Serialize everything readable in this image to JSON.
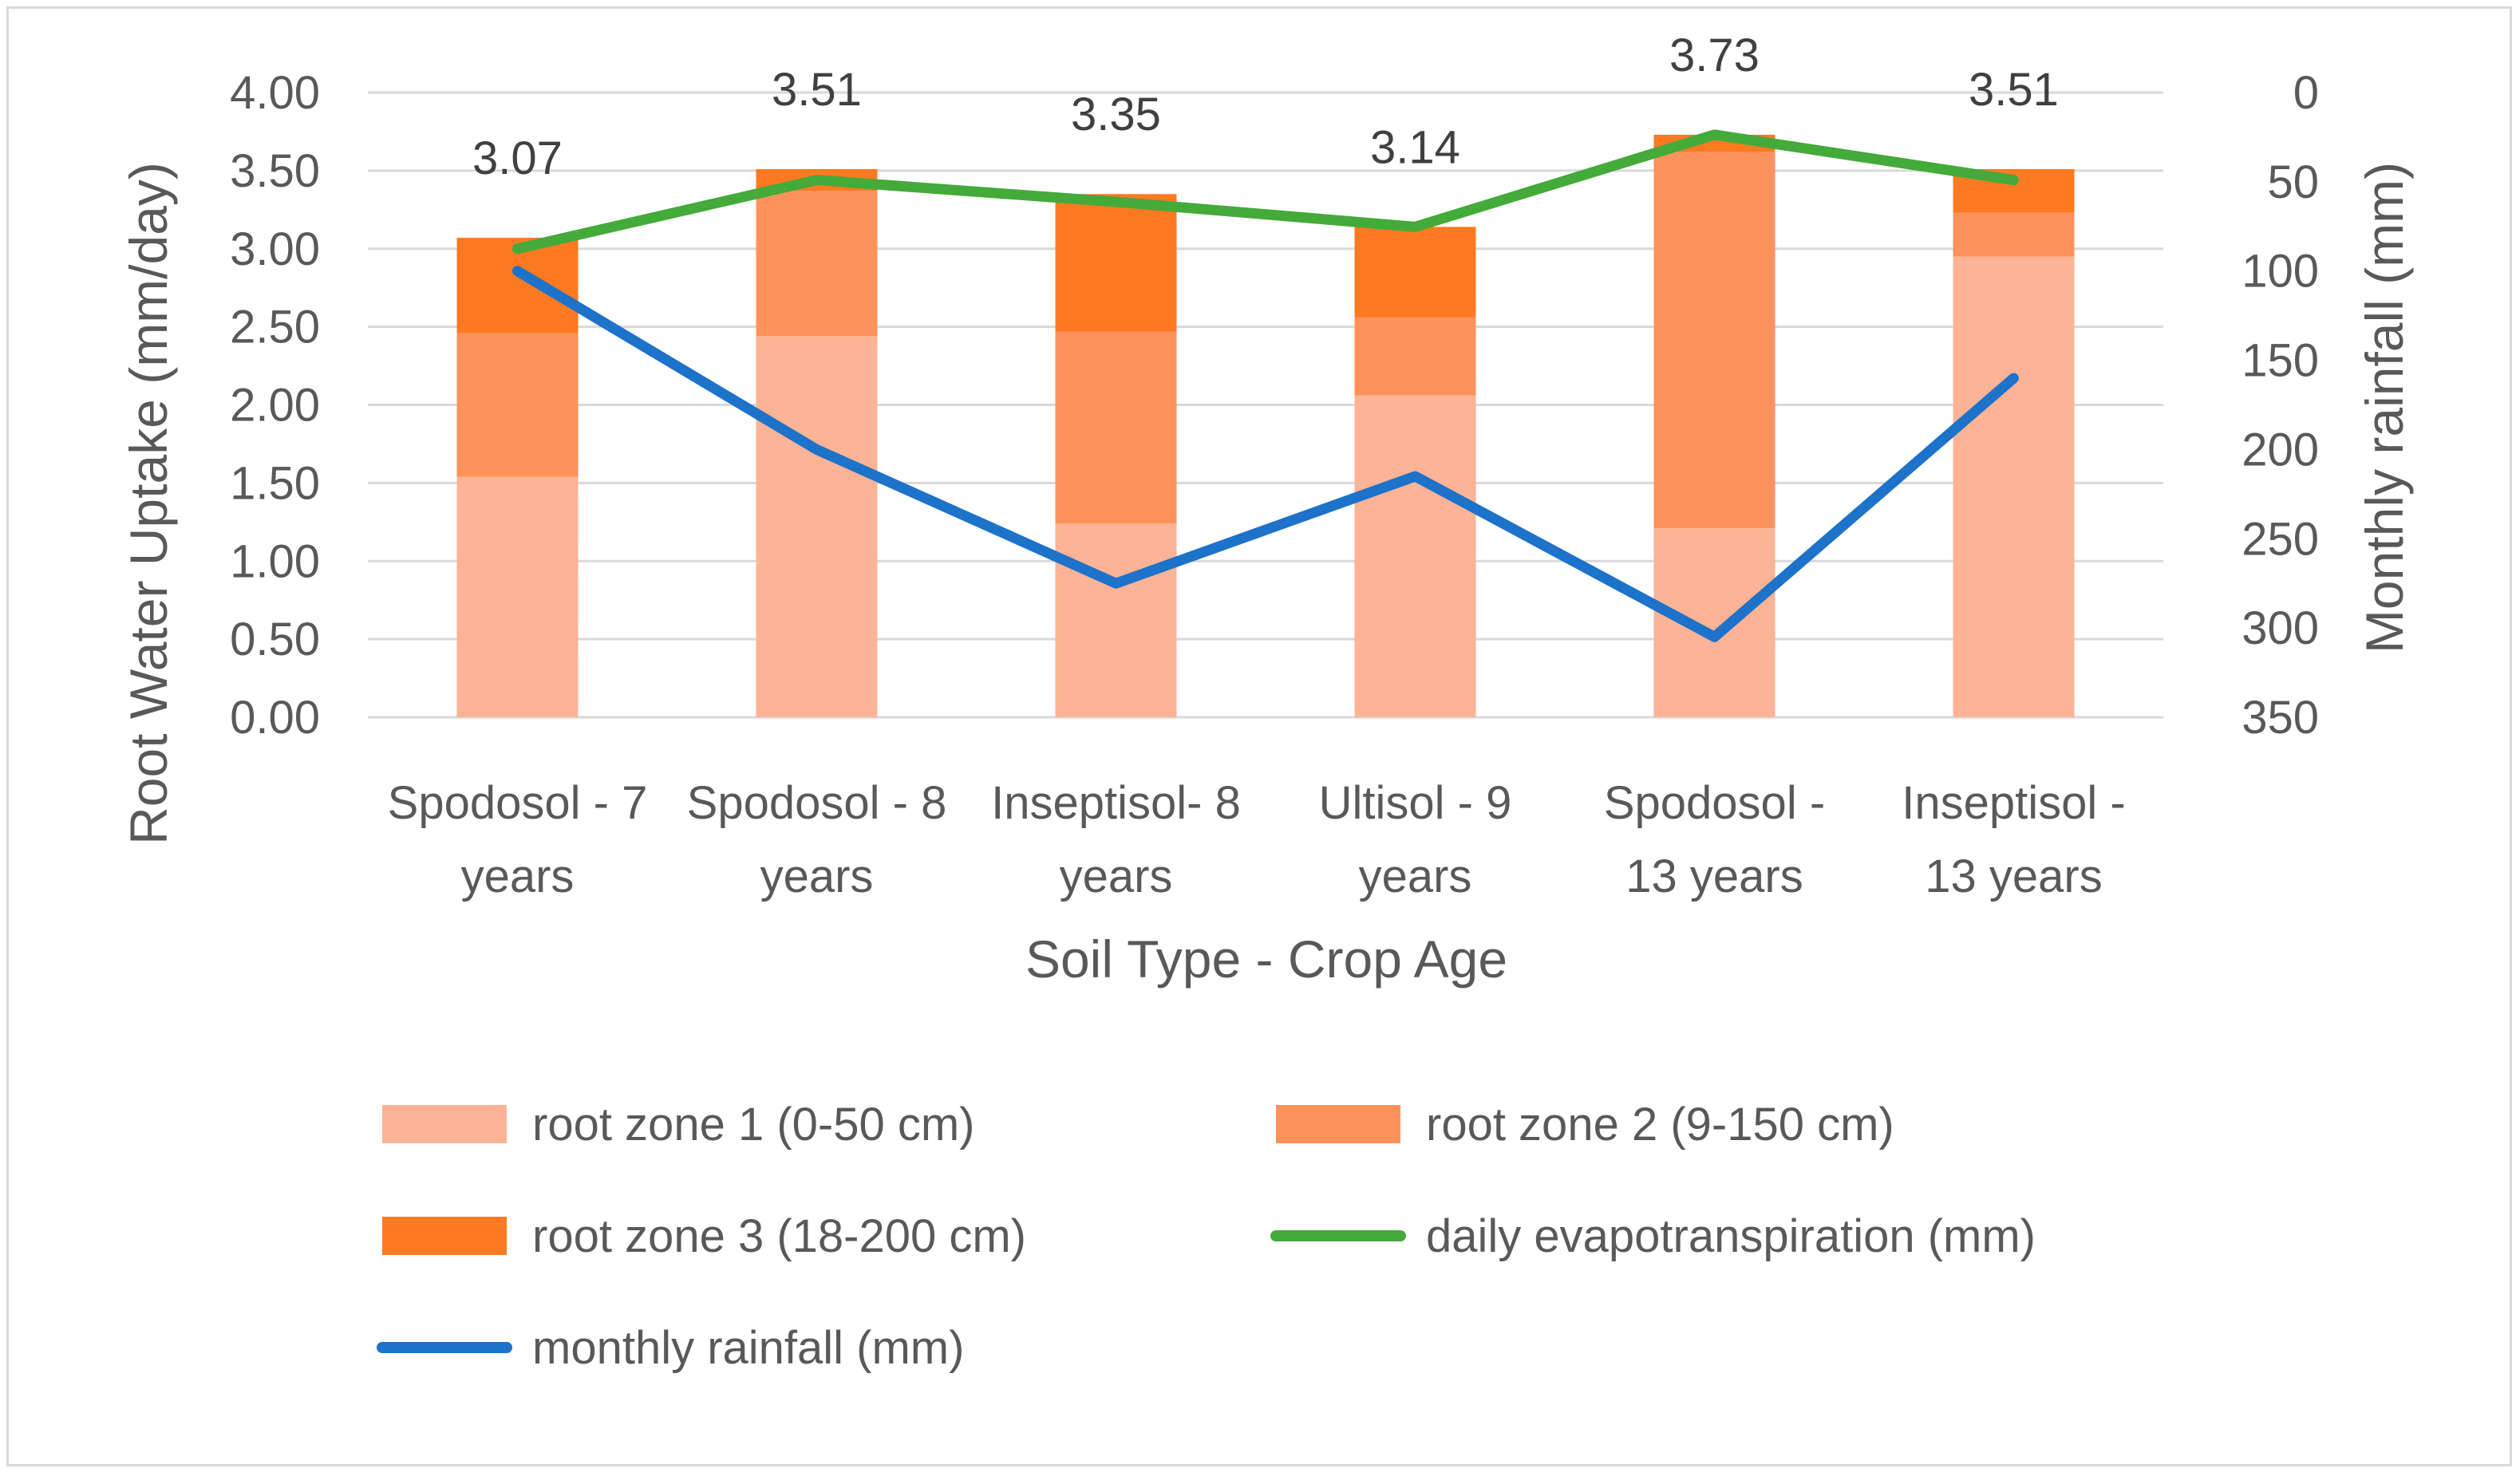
{
  "chart_data": {
    "type": "bar",
    "stacked": true,
    "categories": [
      [
        "Spodosol - 7",
        "years"
      ],
      [
        "Spodosol - 8",
        "years"
      ],
      [
        "Inseptisol- 8",
        "years"
      ],
      [
        "Ultisol - 9",
        "years"
      ],
      [
        "Spodosol -",
        "13 years"
      ],
      [
        "Inseptisol -",
        "13 years"
      ]
    ],
    "series": [
      {
        "name": "root zone 1 (0-50 cm)",
        "type": "bar",
        "color": "#fdb396",
        "values": [
          1.54,
          2.44,
          1.24,
          2.06,
          1.21,
          2.95
        ]
      },
      {
        "name": "root zone 2 (9-150 cm)",
        "type": "bar",
        "color": "#fe925c",
        "values": [
          0.92,
          0.93,
          1.23,
          0.5,
          2.41,
          0.28
        ]
      },
      {
        "name": "root zone 3 (18-200 cm)",
        "type": "bar",
        "color": "#fd7a21",
        "values": [
          0.61,
          0.14,
          0.88,
          0.58,
          0.11,
          0.28
        ]
      },
      {
        "name": "daily evapotranspiration (mm)",
        "type": "line",
        "axis": "left",
        "color": "#44aa39",
        "values": [
          3.0,
          3.44,
          3.3,
          3.14,
          3.73,
          3.44
        ]
      },
      {
        "name": "monthly rainfall (mm)",
        "type": "line",
        "axis": "right",
        "color": "#1d72c9",
        "values": [
          100,
          200,
          275,
          215,
          305,
          160
        ]
      }
    ],
    "totals_labels": [
      "3.07",
      "3.51",
      "3.35",
      "3.14",
      "3.73",
      "3.51"
    ],
    "totals": [
      3.07,
      3.51,
      3.35,
      3.14,
      3.73,
      3.51
    ],
    "ylabel": "Root Water Uptake (mm/day)",
    "y2label": "Monthly rainfall (mm)",
    "xlabel": "Soil Type - Crop Age",
    "ylim": [
      0,
      4
    ],
    "yticks": [
      "0.00",
      "0.50",
      "1.00",
      "1.50",
      "2.00",
      "2.50",
      "3.00",
      "3.50",
      "4.00"
    ],
    "y2lim": [
      0,
      350
    ],
    "y2_reversed": true,
    "y2ticks": [
      "0",
      "50",
      "100",
      "150",
      "200",
      "250",
      "300",
      "350"
    ],
    "grid": true,
    "legend_position": "bottom"
  }
}
